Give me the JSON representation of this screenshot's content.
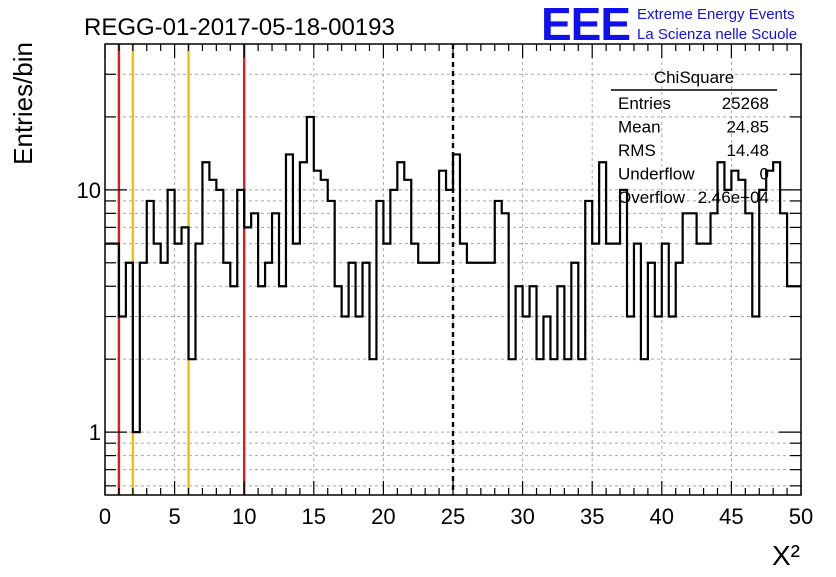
{
  "title": "REGG-01-2017-05-18-00193",
  "logo": {
    "mark": "EEE",
    "line1": "Extreme Energy Events",
    "line2": "La Scienza nelle Scuole",
    "color": "#1010ee"
  },
  "stats_box": {
    "title": "ChiSquare",
    "rows": [
      {
        "label": "Entries",
        "value": "25268"
      },
      {
        "label": "Mean",
        "value": "24.85"
      },
      {
        "label": "RMS",
        "value": "14.48"
      },
      {
        "label": "Underflow",
        "value": "0"
      },
      {
        "label": "Overflow",
        "value": "2.46e+04"
      }
    ]
  },
  "chart_data": {
    "type": "histogram",
    "title": "REGG-01-2017-05-18-00193",
    "xlabel": "X²",
    "ylabel": "Entries/bin",
    "xlim": [
      0,
      50
    ],
    "ylim": [
      0.55,
      40
    ],
    "yscale": "log",
    "xticks": [
      "0",
      "5",
      "10",
      "15",
      "20",
      "25",
      "30",
      "35",
      "40",
      "45",
      "50"
    ],
    "yticks": [
      "1",
      "10"
    ],
    "grid": true,
    "bin_width": 0.5,
    "values": [
      6,
      6,
      3,
      5,
      1,
      5,
      9,
      6,
      5,
      10,
      6,
      7,
      2,
      6,
      13,
      11,
      10,
      5,
      4,
      10,
      7,
      8,
      4,
      5,
      8,
      4,
      14,
      6,
      13,
      20,
      12,
      11,
      9,
      4,
      3,
      5,
      3,
      5,
      2,
      9,
      6,
      10,
      13,
      11,
      6,
      5,
      5,
      5,
      12,
      10,
      14,
      6,
      5,
      5,
      5,
      5,
      9,
      8,
      2,
      4,
      3,
      4,
      2,
      3,
      2,
      4,
      2,
      5,
      2,
      9,
      6,
      13,
      6,
      6,
      10,
      3,
      6,
      2,
      5,
      3,
      6,
      3,
      5,
      8,
      8,
      6,
      6,
      8,
      13,
      10,
      12,
      11,
      8,
      3,
      10,
      12,
      13,
      8,
      4,
      4
    ],
    "vertical_lines": [
      {
        "x": 1,
        "color": "#d42020",
        "style": "solid"
      },
      {
        "x": 2,
        "color": "#f0c000",
        "style": "solid"
      },
      {
        "x": 6,
        "color": "#f0c000",
        "style": "solid"
      },
      {
        "x": 10,
        "color": "#d42020",
        "style": "solid"
      },
      {
        "x": 25,
        "color": "#000000",
        "style": "dashed"
      }
    ]
  }
}
